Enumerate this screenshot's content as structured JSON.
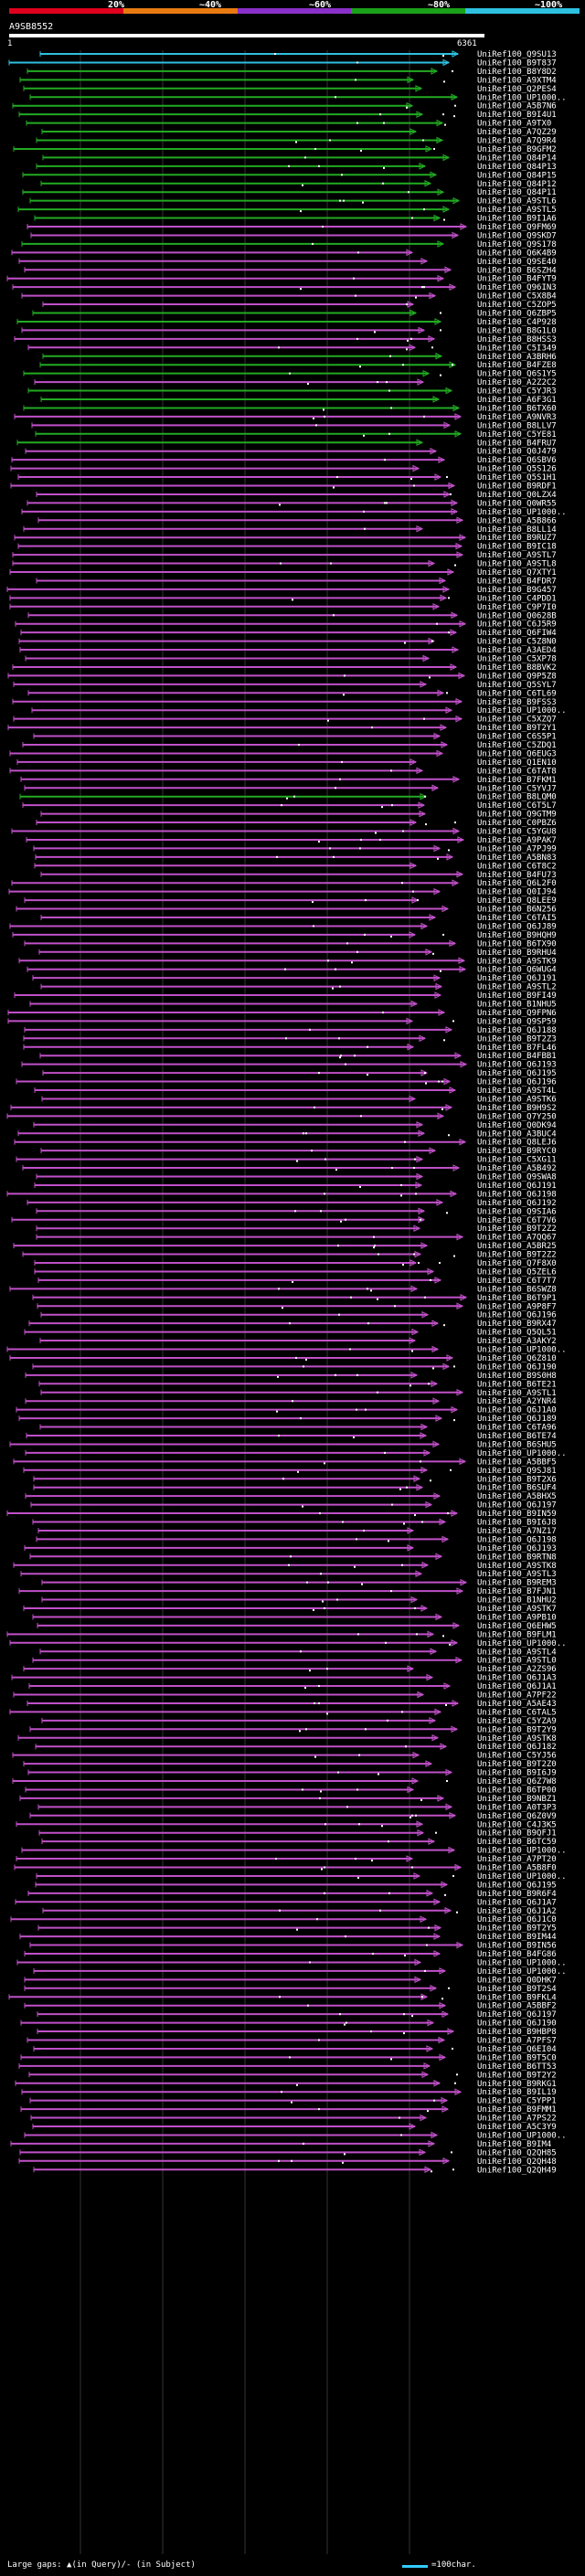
{
  "header": {
    "legend_labels": [
      "20%",
      "~40%",
      "~60%",
      "~80%",
      "~100%"
    ],
    "legend_colors": [
      "#e0001e",
      "#e87a12",
      "#8b2fc9",
      "#1aa01a",
      "#2ec0e0"
    ],
    "query_id": "A9SB8552",
    "query_start": "1",
    "query_end": "6361"
  },
  "footer": {
    "text": "Large gaps: ▲(in Query)/- (in Subject)",
    "scale_text": "=100char."
  },
  "hits": [
    "UniRef100_Q9SU13",
    "UniRef100_B9T837",
    "UniRef100_B8Y8D2",
    "UniRef100_A9XTM4",
    "UniRef100_Q2PES4",
    "UniRef100_UP1000..",
    "UniRef100_A5B7N6",
    "UniRef100_B9I4U1",
    "UniRef100_A9TX0",
    "UniRef100_A7QZ29",
    "UniRef100_A7Q9R4",
    "UniRef100_B9GFM2",
    "UniRef100_Q84P14",
    "UniRef100_Q84P13",
    "UniRef100_Q84P15",
    "UniRef100_Q84P12",
    "UniRef100_Q84P11",
    "UniRef100_A9STL6",
    "UniRef100_A9STL5",
    "UniRef100_B9I1A6",
    "UniRef100_Q9FM69",
    "UniRef100_Q9SKD7",
    "UniRef100_Q9S178",
    "UniRef100_Q6K4B9",
    "UniRef100_Q9SE40",
    "UniRef100_B6SZH4",
    "UniRef100_B4FYT9",
    "UniRef100_Q96IN3",
    "UniRef100_C5X8B4",
    "UniRef100_C5ZOP5",
    "UniRef100_Q6ZBP5",
    "UniRef100_C4P928",
    "UniRef100_B8G1L0",
    "UniRef100_B8HSS3",
    "UniRef100_C5I349",
    "UniRef100_A3BRH6",
    "UniRef100_B4FZE8",
    "UniRef100_Q6S1Y5",
    "UniRef100_A2Z2C2",
    "UniRef100_C5YJR3",
    "UniRef100_A6F3G1",
    "UniRef100_B6TX60",
    "UniRef100_A9NVR3",
    "UniRef100_B8LLV7",
    "UniRef100_C5YE81",
    "UniRef100_B4FRU7",
    "UniRef100_Q0J479",
    "UniRef100_Q6SBV6",
    "UniRef100_Q5S126",
    "UniRef100_Q5S1H1",
    "UniRef100_B9RDF1",
    "UniRef100_Q0LZX4",
    "UniRef100_Q0WR55",
    "UniRef100_UP1000..",
    "UniRef100_A5B866",
    "UniRef100_B8LL14",
    "UniRef100_B9RUZ7",
    "UniRef100_B9IC18",
    "UniRef100_A9STL7",
    "UniRef100_A9STL8",
    "UniRef100_Q7XTY1",
    "UniRef100_B4FDR7",
    "UniRef100_B9G457",
    "UniRef100_C4PDD1",
    "UniRef100_C9P7I0",
    "UniRef100_Q0628B",
    "UniRef100_C6J5R9",
    "UniRef100_Q6FIW4",
    "UniRef100_C5Z8N0",
    "UniRef100_A3AED4",
    "UniRef100_C5XP78",
    "UniRef100_B8BVK2",
    "UniRef100_Q9P5Z8",
    "UniRef100_Q5SYL7",
    "UniRef100_C6TL69",
    "UniRef100_B9FSS3",
    "UniRef100_UP1000..",
    "UniRef100_C5XZQ7",
    "UniRef100_B9T2Y1",
    "UniRef100_C6S5P1",
    "UniRef100_C5ZDQ1",
    "UniRef100_Q6EUG3",
    "UniRef100_Q1EN10",
    "UniRef100_C6TAT8",
    "UniRef100_B7FKM1",
    "UniRef100_C5YVJ7",
    "UniRef100_B8LQM0",
    "UniRef100_C6T5L7",
    "UniRef100_Q9GTM9",
    "UniRef100_C0PBZ6",
    "UniRef100_C5YGU8",
    "UniRef100_A9PAK7",
    "UniRef100_A7PJ99",
    "UniRef100_A5BN83",
    "UniRef100_C6T8C2",
    "UniRef100_B4FU73",
    "UniRef100_Q6L2F0",
    "UniRef100_Q0IJ94",
    "UniRef100_Q8LEE9",
    "UniRef100_B6N256",
    "UniRef100_C6TAI5",
    "UniRef100_Q6JJ89",
    "UniRef100_B9HQH9",
    "UniRef100_B6TX90",
    "UniRef100_B9RHU4",
    "UniRef100_A9STK9",
    "UniRef100_Q6WUG4",
    "UniRef100_Q6J191",
    "UniRef100_A9STL2",
    "UniRef100_B9FI49",
    "UniRef100_B1NHU5",
    "UniRef100_Q9FPN6",
    "UniRef100_Q9SP59",
    "UniRef100_Q6J188",
    "UniRef100_B9T2Z3",
    "UniRef100_B7FL46",
    "UniRef100_B4FBB1",
    "UniRef100_Q6J193",
    "UniRef100_Q6J195",
    "UniRef100_Q6J196",
    "UniRef100_A9ST4L",
    "UniRef100_A9STK6",
    "UniRef100_B9H9S2",
    "UniRef100_Q7Y250",
    "UniRef100_Q0DK94",
    "UniRef100_A3BUC4",
    "UniRef100_Q8LEJ6",
    "UniRef100_B9RYC0",
    "UniRef100_C5XG11",
    "UniRef100_A5B492",
    "UniRef100_Q9SWA8",
    "UniRef100_Q6J191",
    "UniRef100_Q6J198",
    "UniRef100_Q6J192",
    "UniRef100_Q9SIA6",
    "UniRef100_C6T7V6",
    "UniRef100_B9T2Z2",
    "UniRef100_A7QQ67",
    "UniRef100_A5BR25",
    "UniRef100_B9T2Z2",
    "UniRef100_Q7F8X0",
    "UniRef100_Q5ZEL6",
    "UniRef100_C6T7T7",
    "UniRef100_B6SWZ8",
    "UniRef100_B6T9P1",
    "UniRef100_A9P8F7",
    "UniRef100_Q6J196",
    "UniRef100_B9RX47",
    "UniRef100_Q5QL51",
    "UniRef100_A3AKY2",
    "UniRef100_UP1000..",
    "UniRef100_Q6Z810",
    "UniRef100_Q6J190",
    "UniRef100_B9S0H8",
    "UniRef100_B6TE21",
    "UniRef100_A9STL1",
    "UniRef100_A2YNR4",
    "UniRef100_Q6J1A0",
    "UniRef100_Q6J189",
    "UniRef100_C6TA96",
    "UniRef100_B6TE74",
    "UniRef100_B6SHU5",
    "UniRef100_UP1000..",
    "UniRef100_A5BBF5",
    "UniRef100_Q9SJ81",
    "UniRef100_B9T2X6",
    "UniRef100_B6SUF4",
    "UniRef100_A5BHX5",
    "UniRef100_Q6J197",
    "UniRef100_B9IN59",
    "UniRef100_B9I6J8",
    "UniRef100_A7NZ17",
    "UniRef100_Q6J198",
    "UniRef100_Q6J193",
    "UniRef100_B9RTN8",
    "UniRef100_A9STK8",
    "UniRef100_A9STL3",
    "UniRef100_B9REM3",
    "UniRef100_B7FJN1",
    "UniRef100_B1NHU2",
    "UniRef100_A9STK7",
    "UniRef100_A9PB10",
    "UniRef100_Q6EHW5",
    "UniRef100_B9FLM1",
    "UniRef100_UP1000..",
    "UniRef100_A9STL4",
    "UniRef100_A9STL0",
    "UniRef100_A2ZS96",
    "UniRef100_Q6J1A3",
    "UniRef100_Q6J1A1",
    "UniRef100_A7PF22",
    "UniRef100_A5AE43",
    "UniRef100_C6TAL5",
    "UniRef100_C5YZA9",
    "UniRef100_B9T2Y9",
    "UniRef100_A9STK8",
    "UniRef100_Q6J182",
    "UniRef100_C5YJ56",
    "UniRef100_B9T2Z0",
    "UniRef100_B9I6J9",
    "UniRef100_Q6Z7W8",
    "UniRef100_B6TP00",
    "UniRef100_B9NBZ1",
    "UniRef100_A0T3P3",
    "UniRef100_Q6Z0V9",
    "UniRef100_C4J3K5",
    "UniRef100_B9QFJ1",
    "UniRef100_B6TC59",
    "UniRef100_UP1000..",
    "UniRef100_A7PT20",
    "UniRef100_A5B8F0",
    "UniRef100_UP1000..",
    "UniRef100_Q6J195",
    "UniRef100_B9R6F4",
    "UniRef100_Q6J1A7",
    "UniRef100_Q6J1A2",
    "UniRef100_Q6J1C0",
    "UniRef100_B9T2Y5",
    "UniRef100_B9IM44",
    "UniRef100_B9IN56",
    "UniRef100_B4FG86",
    "UniRef100_UP1000..",
    "UniRef100_UP1000..",
    "UniRef100_Q0DHK7",
    "UniRef100_B9T2S4",
    "UniRef100_B9FKL4",
    "UniRef100_A5BBF2",
    "UniRef100_Q6J197",
    "UniRef100_Q6J190",
    "UniRef100_B9HBP8",
    "UniRef100_A7PFS7",
    "UniRef100_Q6EI04",
    "UniRef100_B9T5C0",
    "UniRef100_B6TT53",
    "UniRef100_B9T2Y2",
    "UniRef100_B9RKG1",
    "UniRef100_B9IL19",
    "UniRef100_C5YPP1",
    "UniRef100_B9FMM1",
    "UniRef100_A7PS22",
    "UniRef100_A5C3Y9",
    "UniRef100_UP1000..",
    "UniRef100_B9IM4",
    "UniRef100_Q2QH85",
    "UniRef100_Q2QH48",
    "UniRef100_Q2QH49"
  ]
}
